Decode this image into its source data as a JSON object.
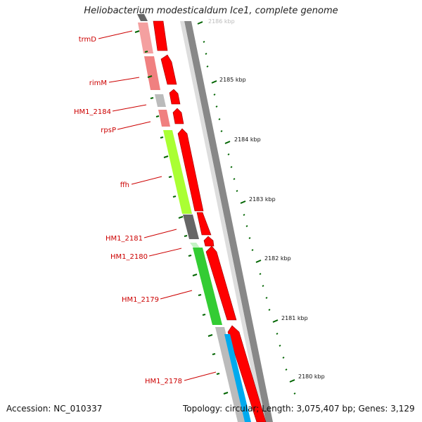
{
  "title": "Heliobacterium modesticaldum Ice1, complete genome",
  "footer": {
    "accession": "Accession: NC_010337",
    "summary": "Topology: circular; Length: 3,075,407 bp; Genes: 3,129"
  },
  "ticks": [
    {
      "label": "2186 kbp",
      "faded": true
    },
    {
      "label": "2185 kbp"
    },
    {
      "label": "2184 kbp"
    },
    {
      "label": "2183 kbp"
    },
    {
      "label": "2182 kbp"
    },
    {
      "label": "2181 kbp"
    },
    {
      "label": "2180 kbp"
    }
  ],
  "genes": [
    {
      "name": "trmD",
      "color": "#f08080"
    },
    {
      "name": "rimM",
      "color": "#f08080"
    },
    {
      "name": "HM1_2184",
      "color": "#bbbbbb"
    },
    {
      "name": "rpsP",
      "color": "#f08080"
    },
    {
      "name": "ffh",
      "color": "#aaff33"
    },
    {
      "name": "HM1_2181",
      "color": "#666666"
    },
    {
      "name": "HM1_2180",
      "color": "#ffffff"
    },
    {
      "name": "HM1_2179",
      "color": "#33cc33"
    },
    {
      "name": "HM1_2178",
      "color": "#bbbbbb"
    }
  ],
  "colors": {
    "cds": "#ff0000",
    "backbone": "#777777",
    "label": "#cc0000",
    "tick": "#006400",
    "transporter": "#00aaee"
  }
}
